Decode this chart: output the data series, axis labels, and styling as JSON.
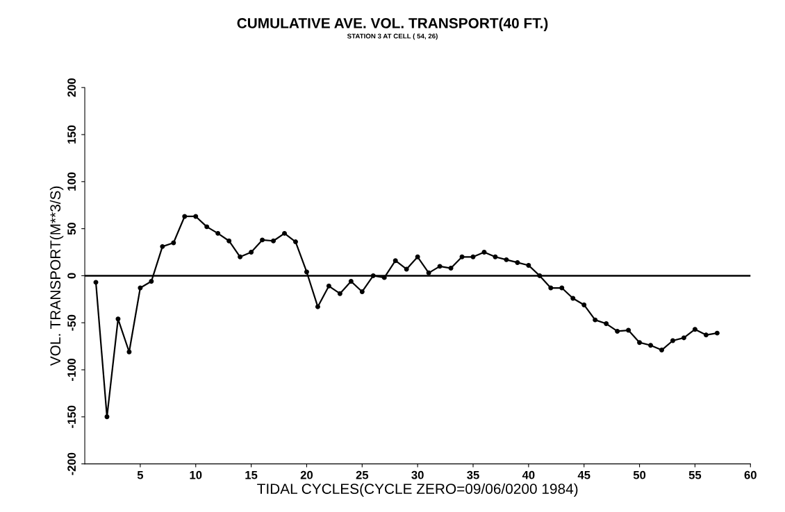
{
  "chart_data": {
    "type": "line",
    "title": "CUMULATIVE AVE. VOL. TRANSPORT(40 FT.)",
    "subtitle": "STATION 3 AT CELL ( 54, 26)",
    "xlabel": "TIDAL CYCLES(CYCLE ZERO=09/06/0200 1984)",
    "ylabel": "VOL. TRANSPORT(M**3/S)",
    "x": [
      1,
      2,
      3,
      4,
      5,
      6,
      7,
      8,
      9,
      10,
      11,
      12,
      13,
      14,
      15,
      16,
      17,
      18,
      19,
      20,
      21,
      22,
      23,
      24,
      25,
      26,
      27,
      28,
      29,
      30,
      31,
      32,
      33,
      34,
      35,
      36,
      37,
      38,
      39,
      40,
      41,
      42,
      43,
      44,
      45,
      46,
      47,
      48,
      49,
      50,
      51,
      52,
      53,
      54,
      55,
      56,
      57
    ],
    "series": [
      {
        "color": "#000000",
        "values": [
          -7,
          -150,
          -46,
          -81,
          -13,
          -6,
          31,
          35,
          63,
          63,
          52,
          45,
          37,
          20,
          25,
          38,
          37,
          45,
          36,
          4,
          -33,
          -11,
          -19,
          -6,
          -17,
          0,
          -2,
          16,
          7,
          20,
          3,
          10,
          8,
          20,
          20,
          25,
          20,
          17,
          14,
          11,
          0,
          -13,
          -13,
          -24,
          -31,
          -47,
          -51,
          -59,
          -58,
          -71,
          -74,
          -79,
          -69,
          -66,
          -57,
          -63,
          -61
        ]
      }
    ],
    "xlim": [
      0,
      60
    ],
    "xticks": [
      5,
      10,
      15,
      20,
      25,
      30,
      35,
      40,
      45,
      50,
      55,
      60
    ],
    "ylim": [
      -200,
      200
    ],
    "yticks": [
      -200,
      -150,
      -100,
      -50,
      0,
      50,
      100,
      150,
      200
    ],
    "ref_lines": [
      {
        "axis": "y",
        "value": 0,
        "color": "#000000"
      }
    ],
    "grid": false,
    "legend": false,
    "marker": "circle",
    "line_style": "solid"
  }
}
